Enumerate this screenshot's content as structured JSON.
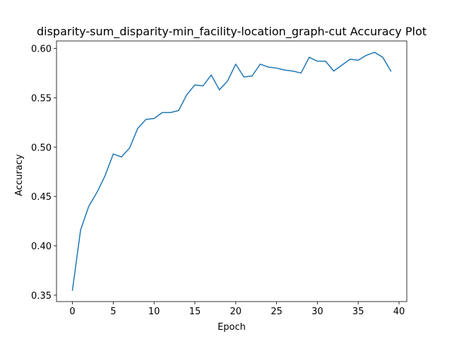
{
  "chart_data": {
    "type": "line",
    "title": "disparity-sum_disparity-min_facility-location_graph-cut Accuracy Plot",
    "xlabel": "Epoch",
    "ylabel": "Accuracy",
    "xlim": [
      -1.95,
      40.95
    ],
    "ylim": [
      0.3435,
      0.6075
    ],
    "xticks": [
      0,
      5,
      10,
      15,
      20,
      25,
      30,
      35,
      40
    ],
    "xtick_labels": [
      "0",
      "5",
      "10",
      "15",
      "20",
      "25",
      "30",
      "35",
      "40"
    ],
    "yticks": [
      0.35,
      0.4,
      0.45,
      0.5,
      0.55,
      0.6
    ],
    "ytick_labels": [
      "0.35",
      "0.40",
      "0.45",
      "0.50",
      "0.55",
      "0.60"
    ],
    "grid": false,
    "legend": "none",
    "series": [
      {
        "color": "#1f77b4",
        "x": [
          0,
          1,
          2,
          3,
          4,
          5,
          6,
          7,
          8,
          9,
          10,
          11,
          12,
          13,
          14,
          15,
          16,
          17,
          18,
          19,
          20,
          21,
          22,
          23,
          24,
          25,
          26,
          27,
          28,
          29,
          30,
          31,
          32,
          33,
          34,
          35,
          36,
          37,
          38,
          39
        ],
        "values": [
          0.355,
          0.416,
          0.44,
          0.454,
          0.471,
          0.493,
          0.49,
          0.499,
          0.519,
          0.528,
          0.529,
          0.535,
          0.535,
          0.537,
          0.553,
          0.563,
          0.562,
          0.573,
          0.558,
          0.567,
          0.584,
          0.571,
          0.572,
          0.584,
          0.581,
          0.58,
          0.578,
          0.577,
          0.575,
          0.591,
          0.587,
          0.587,
          0.577,
          0.583,
          0.589,
          0.588,
          0.593,
          0.596,
          0.591,
          0.577
        ]
      }
    ]
  }
}
